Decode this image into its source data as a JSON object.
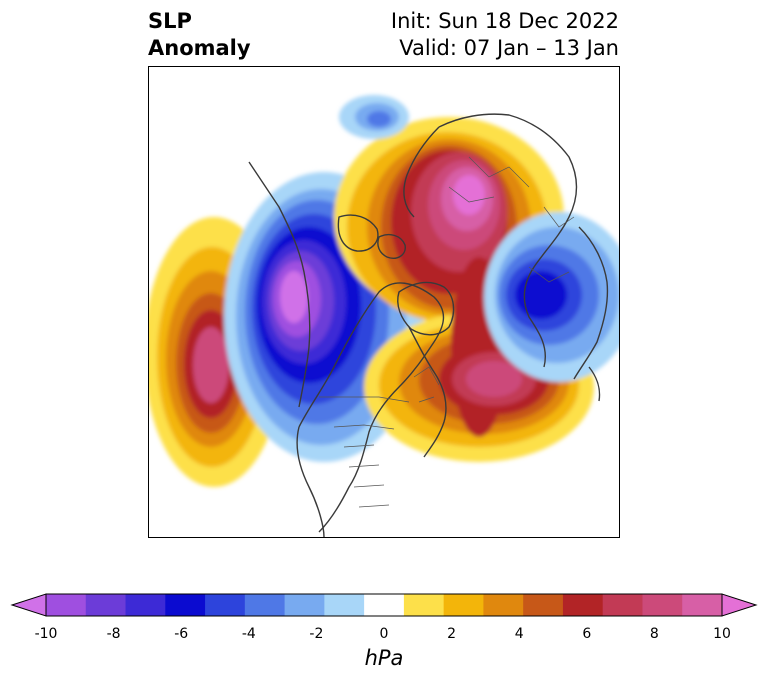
{
  "title": {
    "left_line1": "SLP",
    "left_line2": "Anomaly",
    "init": "Init: Sun 18 Dec 2022",
    "valid": "Valid: 07 Jan – 13 Jan"
  },
  "colorbar": {
    "unit": "hPa",
    "ticks": [
      "-10",
      "-8",
      "-6",
      "-4",
      "-2",
      "0",
      "2",
      "4",
      "6",
      "8",
      "10"
    ],
    "colors": [
      "#d071e8",
      "#9f4fe0",
      "#6c3cd8",
      "#3d2ad6",
      "#0b0bd0",
      "#2d44dc",
      "#4f78e6",
      "#78aaf0",
      "#a8d6f8",
      "#ffffff",
      "#fde04a",
      "#f3b50a",
      "#e0880e",
      "#c75818",
      "#b22426",
      "#c23a55",
      "#cc4a7a",
      "#d75fa6",
      "#e470d6"
    ]
  },
  "map": {
    "projection": "north-polar-stereographic",
    "anomaly_centers": [
      {
        "name": "northeast-pacific-high",
        "sign": "positive",
        "peak_hpa": 8
      },
      {
        "name": "western-canada-low",
        "sign": "negative",
        "peak_hpa": -10
      },
      {
        "name": "arctic-high",
        "sign": "positive",
        "peak_hpa": 10
      },
      {
        "name": "north-atlantic-high",
        "sign": "positive",
        "peak_hpa": 8
      },
      {
        "name": "east-asia-low",
        "sign": "negative",
        "peak_hpa": -7
      }
    ]
  }
}
